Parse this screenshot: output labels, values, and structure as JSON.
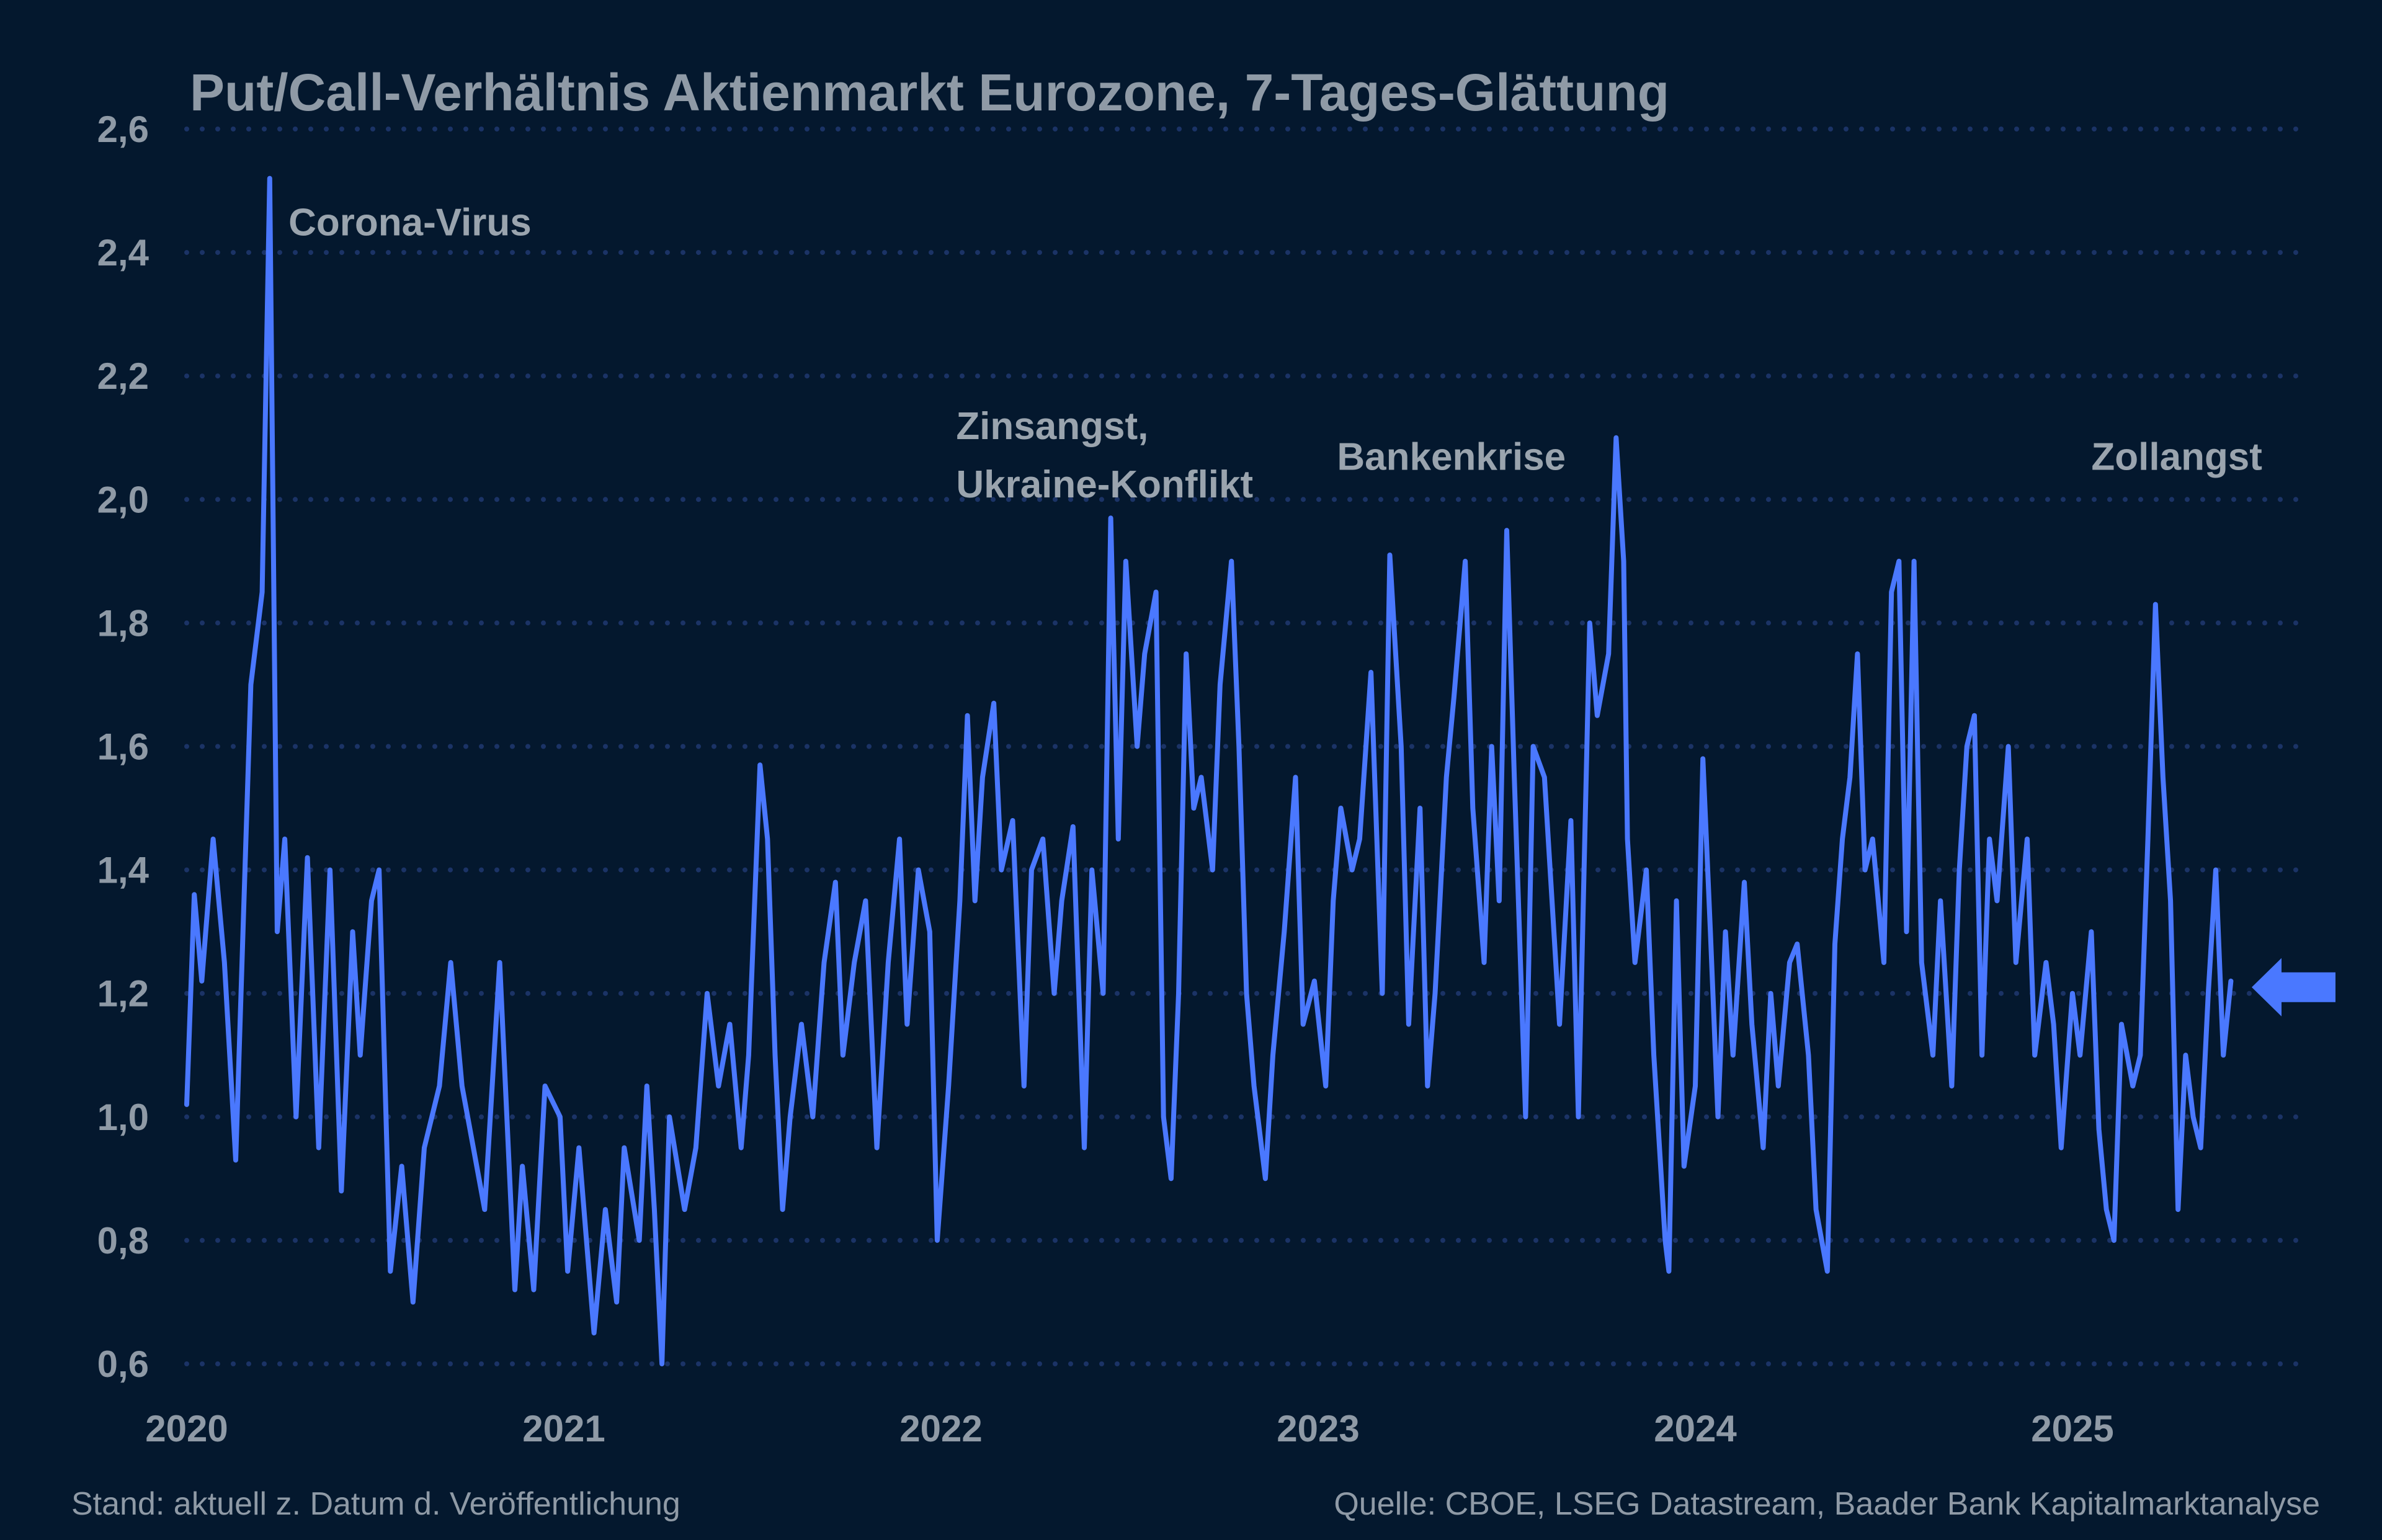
{
  "chart_data": {
    "type": "line",
    "title": "Put/Call-Verhältnis Aktienmarkt Eurozone, 7-Tages-Glättung",
    "xlabel": "",
    "ylabel": "",
    "xlim": [
      2020,
      2025.6
    ],
    "ylim": [
      0.6,
      2.6
    ],
    "x_ticks": [
      "2020",
      "2021",
      "2022",
      "2023",
      "2024",
      "2025"
    ],
    "y_ticks": [
      "0,6",
      "0,8",
      "1,0",
      "1,2",
      "1,4",
      "1,6",
      "1,8",
      "2,0",
      "2,2",
      "2,4",
      "2,6"
    ],
    "grid": "horizontal dotted",
    "line_color": "#4a78ff",
    "background": "#04182e",
    "annotations": [
      {
        "lines": [
          "Corona-Virus"
        ],
        "x": 2020.27,
        "y": 2.45
      },
      {
        "lines": [
          "Zinsangst,",
          "Ukraine-Konflikt"
        ],
        "x": 2022.04,
        "y": 2.12
      },
      {
        "lines": [
          "Bankenkrise"
        ],
        "x": 2023.05,
        "y": 2.07
      },
      {
        "lines": [
          "Zollangst"
        ],
        "x": 2025.05,
        "y": 2.07
      }
    ],
    "marker": {
      "type": "arrow-left",
      "value": 1.21
    },
    "series": [
      {
        "x": [
          2020.0,
          2020.02,
          2020.04,
          2020.07,
          2020.1,
          2020.13,
          2020.17,
          2020.2,
          2020.22,
          2020.24,
          2020.26,
          2020.29,
          2020.32,
          2020.35,
          2020.38,
          2020.41,
          2020.44,
          2020.46,
          2020.49,
          2020.51,
          2020.54,
          2020.57,
          2020.6,
          2020.63,
          2020.67,
          2020.7,
          2020.73,
          2020.76,
          2020.79,
          2020.83,
          2020.87,
          2020.89,
          2020.92,
          2020.95,
          2020.99,
          2021.01,
          2021.04,
          2021.08,
          2021.11,
          2021.14,
          2021.16,
          2021.2,
          2021.22,
          2021.24,
          2021.26,
          2021.28,
          2021.32,
          2021.35,
          2021.38,
          2021.41,
          2021.44,
          2021.47,
          2021.49,
          2021.52,
          2021.54,
          2021.56,
          2021.58,
          2021.6,
          2021.63,
          2021.66,
          2021.69,
          2021.72,
          2021.74,
          2021.77,
          2021.8,
          2021.83,
          2021.86,
          2021.89,
          2021.91,
          2021.94,
          2021.97,
          2021.99,
          2022.02,
          2022.05,
          2022.07,
          2022.09,
          2022.11,
          2022.14,
          2022.16,
          2022.19,
          2022.22,
          2022.24,
          2022.27,
          2022.3,
          2022.32,
          2022.35,
          2022.38,
          2022.4,
          2022.43,
          2022.45,
          2022.47,
          2022.49,
          2022.52,
          2022.54,
          2022.57,
          2022.59,
          2022.61,
          2022.63,
          2022.65,
          2022.67,
          2022.69,
          2022.72,
          2022.74,
          2022.77,
          2022.79,
          2022.81,
          2022.83,
          2022.86,
          2022.88,
          2022.91,
          2022.94,
          2022.96,
          2022.99,
          2023.02,
          2023.04,
          2023.06,
          2023.09,
          2023.11,
          2023.14,
          2023.17,
          2023.19,
          2023.22,
          2023.24,
          2023.27,
          2023.29,
          2023.31,
          2023.34,
          2023.36,
          2023.39,
          2023.41,
          2023.44,
          2023.46,
          2023.48,
          2023.5,
          2023.52,
          2023.55,
          2023.57,
          2023.6,
          2023.62,
          2023.64,
          2023.67,
          2023.69,
          2023.72,
          2023.74,
          2023.77,
          2023.79,
          2023.81,
          2023.82,
          2023.84,
          2023.87,
          2023.89,
          2023.92,
          2023.93,
          2023.95,
          2023.97,
          2024.0,
          2024.02,
          2024.04,
          2024.06,
          2024.08,
          2024.1,
          2024.13,
          2024.15,
          2024.18,
          2024.2,
          2024.22,
          2024.25,
          2024.27,
          2024.3,
          2024.32,
          2024.35,
          2024.37,
          2024.39,
          2024.41,
          2024.43,
          2024.45,
          2024.47,
          2024.5,
          2024.52,
          2024.54,
          2024.56,
          2024.58,
          2024.6,
          2024.63,
          2024.65,
          2024.68,
          2024.7,
          2024.72,
          2024.74,
          2024.76,
          2024.78,
          2024.8,
          2024.83,
          2024.85,
          2024.88,
          2024.9,
          2024.93,
          2024.95,
          2024.97,
          2025.0,
          2025.02,
          2025.05,
          2025.07,
          2025.09,
          2025.11,
          2025.13,
          2025.16,
          2025.18,
          2025.2,
          2025.22,
          2025.24,
          2025.26,
          2025.28,
          2025.3,
          2025.32,
          2025.34,
          2025.36,
          2025.38,
          2025.4,
          2025.42
        ],
        "y": [
          1.02,
          1.36,
          1.22,
          1.45,
          1.25,
          0.93,
          1.7,
          1.85,
          2.52,
          1.3,
          1.45,
          1.0,
          1.42,
          0.95,
          1.4,
          0.88,
          1.3,
          1.1,
          1.35,
          1.4,
          0.75,
          0.92,
          0.7,
          0.95,
          1.05,
          1.25,
          1.05,
          0.95,
          0.85,
          1.25,
          0.72,
          0.92,
          0.72,
          1.05,
          1.0,
          0.75,
          0.95,
          0.65,
          0.85,
          0.7,
          0.95,
          0.8,
          1.05,
          0.85,
          0.6,
          1.0,
          0.85,
          0.95,
          1.2,
          1.05,
          1.15,
          0.95,
          1.1,
          1.57,
          1.45,
          1.1,
          0.85,
          1.0,
          1.15,
          1.0,
          1.25,
          1.38,
          1.1,
          1.25,
          1.35,
          0.95,
          1.25,
          1.45,
          1.15,
          1.4,
          1.3,
          0.8,
          1.05,
          1.35,
          1.65,
          1.35,
          1.55,
          1.67,
          1.4,
          1.48,
          1.05,
          1.4,
          1.45,
          1.2,
          1.35,
          1.47,
          0.95,
          1.4,
          1.2,
          1.97,
          1.45,
          1.9,
          1.6,
          1.75,
          1.85,
          1.0,
          0.9,
          1.2,
          1.75,
          1.5,
          1.55,
          1.4,
          1.7,
          1.9,
          1.6,
          1.2,
          1.05,
          0.9,
          1.1,
          1.3,
          1.55,
          1.15,
          1.22,
          1.05,
          1.35,
          1.5,
          1.4,
          1.45,
          1.72,
          1.2,
          1.91,
          1.6,
          1.15,
          1.5,
          1.05,
          1.2,
          1.55,
          1.68,
          1.9,
          1.5,
          1.25,
          1.6,
          1.35,
          1.95,
          1.55,
          1.0,
          1.6,
          1.55,
          1.35,
          1.15,
          1.48,
          1.0,
          1.8,
          1.65,
          1.75,
          2.1,
          1.9,
          1.45,
          1.25,
          1.4,
          1.1,
          0.8,
          0.75,
          1.35,
          0.92,
          1.05,
          1.58,
          1.3,
          1.0,
          1.3,
          1.1,
          1.38,
          1.15,
          0.95,
          1.2,
          1.05,
          1.25,
          1.28,
          1.1,
          0.85,
          0.75,
          1.28,
          1.45,
          1.55,
          1.75,
          1.4,
          1.45,
          1.25,
          1.85,
          1.9,
          1.3,
          1.9,
          1.25,
          1.1,
          1.35,
          1.05,
          1.4,
          1.6,
          1.65,
          1.1,
          1.45,
          1.35,
          1.6,
          1.25,
          1.45,
          1.1,
          1.25,
          1.15,
          0.95,
          1.2,
          1.1,
          1.3,
          0.98,
          0.85,
          0.8,
          1.15,
          1.05,
          1.1,
          1.45,
          1.83,
          1.55,
          1.35,
          0.85,
          1.1,
          1.0,
          0.95,
          1.2,
          1.4,
          1.1,
          1.22
        ]
      }
    ]
  },
  "footer": {
    "left": "Stand: aktuell z. Datum d. Veröffentlichung",
    "right": "Quelle: CBOE, LSEG Datastream, Baader Bank Kapitalmarktanalyse"
  }
}
